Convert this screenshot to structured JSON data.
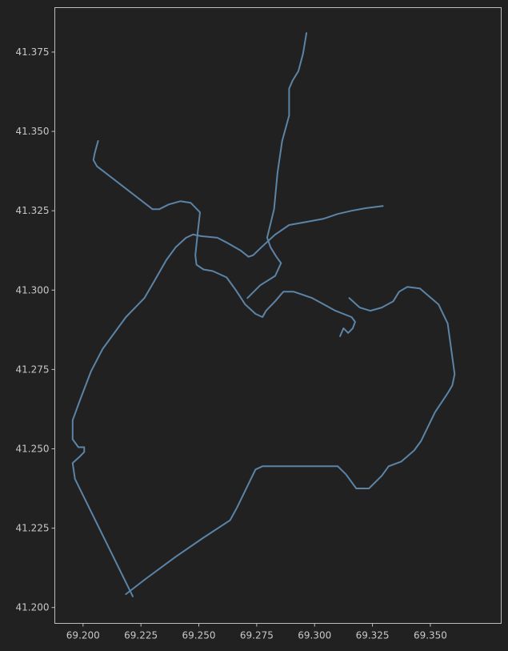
{
  "colors": {
    "background": "#212121",
    "axes": "#bdbdbd",
    "text": "#c8c8c8",
    "route": "#5b84a6"
  },
  "chart_data": {
    "type": "line",
    "title": "",
    "xlabel": "",
    "ylabel": "",
    "xlim": [
      69.1878,
      69.3806
    ],
    "ylim": [
      41.195,
      41.389
    ],
    "grid": false,
    "x_ticks": [
      "69.200",
      "69.225",
      "69.250",
      "69.275",
      "69.300",
      "69.325",
      "69.350"
    ],
    "y_ticks": [
      "41.200",
      "41.225",
      "41.250",
      "41.275",
      "41.300",
      "41.325",
      "41.350",
      "41.375"
    ],
    "series": [
      {
        "values": [
          [
            69.2065,
            41.347
          ],
          [
            69.205,
            41.343
          ],
          [
            69.2045,
            41.341
          ],
          [
            69.206,
            41.339
          ],
          [
            69.23,
            41.3255
          ],
          [
            69.233,
            41.3255
          ],
          [
            69.237,
            41.327
          ],
          [
            69.242,
            41.328
          ],
          [
            69.2465,
            41.3275
          ],
          [
            69.2505,
            41.3245
          ],
          [
            69.2495,
            41.318
          ],
          [
            69.2485,
            41.311
          ],
          [
            69.249,
            41.308
          ],
          [
            69.252,
            41.3065
          ],
          [
            69.256,
            41.306
          ],
          [
            69.262,
            41.304
          ],
          [
            69.266,
            41.3
          ],
          [
            69.27,
            41.2955
          ],
          [
            69.2745,
            41.2925
          ],
          [
            69.2775,
            41.2915
          ],
          [
            69.279,
            41.2935
          ],
          [
            69.283,
            41.2965
          ],
          [
            69.2865,
            41.2995
          ],
          [
            69.291,
            41.2995
          ],
          [
            69.299,
            41.2975
          ],
          [
            69.309,
            41.2935
          ],
          [
            69.316,
            41.2915
          ],
          [
            69.3175,
            41.29
          ],
          [
            69.3165,
            41.288
          ],
          [
            69.3145,
            41.2865
          ],
          [
            69.3125,
            41.288
          ],
          [
            69.311,
            41.2855
          ]
        ]
      },
      {
        "values": [
          [
            69.2185,
            41.2042
          ],
          [
            69.227,
            41.209
          ],
          [
            69.24,
            41.216
          ],
          [
            69.252,
            41.222
          ],
          [
            69.2635,
            41.2275
          ],
          [
            69.2665,
            41.2315
          ],
          [
            69.2745,
            41.2435
          ],
          [
            69.2775,
            41.2445
          ],
          [
            69.31,
            41.2445
          ],
          [
            69.3135,
            41.242
          ],
          [
            69.318,
            41.2375
          ],
          [
            69.3235,
            41.2375
          ],
          [
            69.329,
            41.2415
          ],
          [
            69.332,
            41.2445
          ],
          [
            69.3375,
            41.246
          ],
          [
            69.343,
            41.2495
          ],
          [
            69.346,
            41.2525
          ],
          [
            69.352,
            41.2615
          ],
          [
            69.3575,
            41.2675
          ],
          [
            69.3595,
            41.27
          ],
          [
            69.3605,
            41.2735
          ],
          [
            69.3575,
            41.2895
          ],
          [
            69.3535,
            41.2955
          ],
          [
            69.3455,
            41.3005
          ],
          [
            69.34,
            41.301
          ],
          [
            69.3365,
            41.2995
          ],
          [
            69.334,
            41.2965
          ],
          [
            69.329,
            41.2945
          ],
          [
            69.324,
            41.2935
          ],
          [
            69.3195,
            41.2945
          ],
          [
            69.315,
            41.2975
          ]
        ]
      },
      {
        "values": [
          [
            69.2215,
            41.2035
          ],
          [
            69.1965,
            41.2405
          ],
          [
            69.1955,
            41.2455
          ],
          [
            69.1985,
            41.2475
          ],
          [
            69.2005,
            41.249
          ],
          [
            69.2005,
            41.2505
          ],
          [
            69.198,
            41.2505
          ],
          [
            69.1955,
            41.253
          ],
          [
            69.1955,
            41.259
          ],
          [
            69.1985,
            41.265
          ],
          [
            69.2035,
            41.2745
          ],
          [
            69.2085,
            41.2815
          ],
          [
            69.2185,
            41.2915
          ],
          [
            69.2265,
            41.2975
          ],
          [
            69.2305,
            41.3025
          ],
          [
            69.236,
            41.3095
          ],
          [
            69.24,
            41.3135
          ],
          [
            69.2445,
            41.3165
          ],
          [
            69.2475,
            41.3175
          ],
          [
            69.251,
            41.317
          ],
          [
            69.258,
            41.3165
          ],
          [
            69.262,
            41.315
          ],
          [
            69.268,
            41.3125
          ],
          [
            69.2715,
            41.3105
          ],
          [
            69.2735,
            41.311
          ],
          [
            69.277,
            41.3135
          ],
          [
            69.283,
            41.3175
          ],
          [
            69.289,
            41.3205
          ],
          [
            69.2965,
            41.3215
          ],
          [
            69.304,
            41.3225
          ],
          [
            69.31,
            41.324
          ],
          [
            69.316,
            41.325
          ],
          [
            69.322,
            41.3258
          ],
          [
            69.3295,
            41.3265
          ]
        ]
      },
      {
        "values": [
          [
            69.2965,
            41.381
          ],
          [
            69.295,
            41.3745
          ],
          [
            69.293,
            41.369
          ],
          [
            69.2905,
            41.366
          ],
          [
            69.289,
            41.3635
          ],
          [
            69.289,
            41.355
          ],
          [
            69.286,
            41.347
          ],
          [
            69.284,
            41.337
          ],
          [
            69.2825,
            41.3255
          ],
          [
            69.2805,
            41.3195
          ],
          [
            69.2795,
            41.3165
          ],
          [
            69.281,
            41.3135
          ],
          [
            69.2835,
            41.3105
          ],
          [
            69.2855,
            41.3085
          ],
          [
            69.283,
            41.3045
          ],
          [
            69.2765,
            41.3015
          ],
          [
            69.271,
            41.2975
          ]
        ]
      }
    ]
  }
}
